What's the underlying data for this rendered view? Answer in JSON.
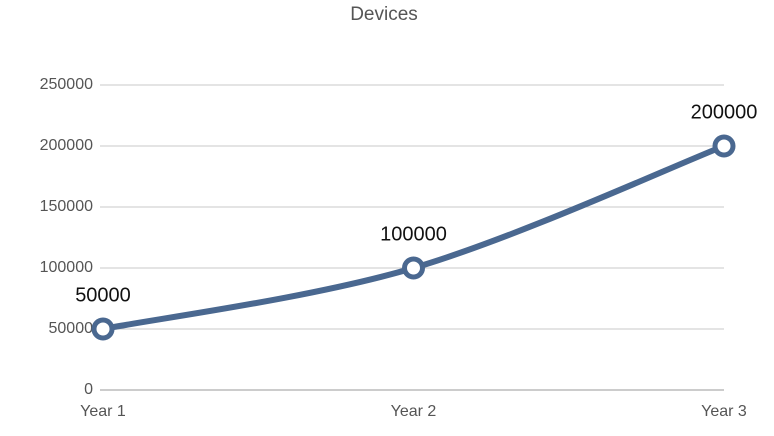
{
  "chart_data": {
    "type": "line",
    "title": "Devices",
    "categories": [
      "Year 1",
      "Year 2",
      "Year 3"
    ],
    "series": [
      {
        "name": "Devices",
        "color": "#4a6890",
        "values": [
          50000,
          100000,
          200000
        ]
      }
    ],
    "ylim": [
      0,
      250000
    ],
    "yticks": [
      0,
      50000,
      100000,
      150000,
      200000,
      250000
    ],
    "grid": true,
    "smooth": true,
    "data_labels": true
  }
}
